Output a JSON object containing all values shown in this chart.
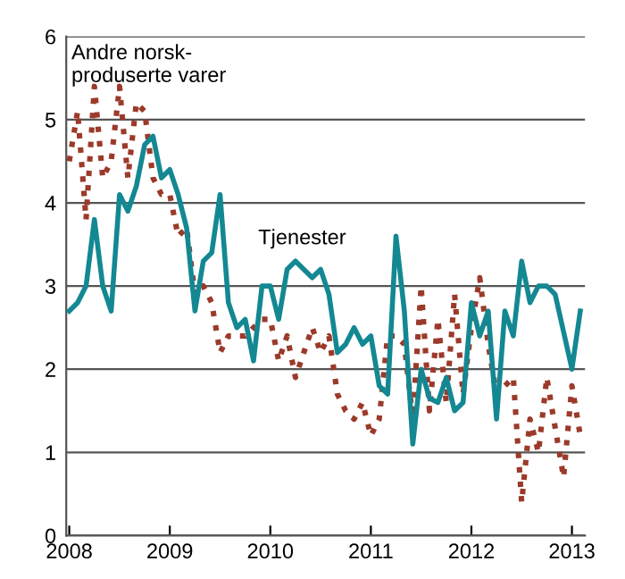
{
  "chart_data": {
    "type": "line",
    "x": [
      2008.0,
      2008.083,
      2008.167,
      2008.25,
      2008.333,
      2008.417,
      2008.5,
      2008.583,
      2008.667,
      2008.75,
      2008.833,
      2008.917,
      2009.0,
      2009.083,
      2009.167,
      2009.25,
      2009.333,
      2009.417,
      2009.5,
      2009.583,
      2009.667,
      2009.75,
      2009.833,
      2009.917,
      2010.0,
      2010.083,
      2010.167,
      2010.25,
      2010.333,
      2010.417,
      2010.5,
      2010.583,
      2010.667,
      2010.75,
      2010.833,
      2010.917,
      2011.0,
      2011.083,
      2011.167,
      2011.25,
      2011.333,
      2011.417,
      2011.5,
      2011.583,
      2011.667,
      2011.75,
      2011.833,
      2011.917,
      2012.0,
      2012.083,
      2012.167,
      2012.25,
      2012.333,
      2012.417,
      2012.5,
      2012.583,
      2012.667,
      2012.75,
      2012.833,
      2012.917,
      2013.0,
      2013.083
    ],
    "series": [
      {
        "name": "Andre norsk-\nproduserte varer",
        "color": "#9b3a2a",
        "line_style": "dotted",
        "values": [
          4.5,
          5.1,
          3.8,
          5.4,
          4.3,
          4.5,
          5.4,
          4.3,
          5.2,
          5.1,
          4.3,
          4.1,
          4.1,
          3.6,
          3.7,
          2.9,
          3.0,
          2.8,
          2.2,
          2.4,
          2.4,
          2.4,
          2.5,
          2.6,
          2.6,
          2.1,
          2.4,
          1.9,
          2.2,
          2.5,
          2.2,
          2.4,
          1.7,
          1.5,
          1.4,
          1.6,
          1.2,
          1.4,
          2.4,
          2.4,
          2.3,
          1.4,
          3.0,
          1.5,
          2.6,
          1.6,
          2.9,
          1.7,
          2.5,
          3.1,
          2.3,
          1.7,
          1.8,
          1.9,
          0.4,
          1.4,
          1.0,
          1.9,
          1.3,
          0.7,
          1.8,
          1.2
        ]
      },
      {
        "name": "Tjenester",
        "color": "#138892",
        "line_style": "solid",
        "values": [
          2.7,
          2.8,
          3.0,
          3.8,
          3.0,
          2.7,
          4.1,
          3.9,
          4.2,
          4.7,
          4.8,
          4.3,
          4.4,
          4.1,
          3.7,
          2.7,
          3.3,
          3.4,
          4.1,
          2.8,
          2.5,
          2.6,
          2.1,
          3.0,
          3.0,
          2.6,
          3.2,
          3.3,
          3.2,
          3.1,
          3.2,
          2.9,
          2.2,
          2.3,
          2.5,
          2.3,
          2.4,
          1.8,
          1.7,
          3.6,
          2.7,
          1.1,
          2.0,
          1.65,
          1.6,
          1.9,
          1.5,
          1.6,
          2.8,
          2.4,
          2.7,
          1.4,
          2.7,
          2.4,
          3.3,
          2.8,
          3.0,
          3.0,
          2.9,
          2.45,
          2.0,
          2.7
        ]
      }
    ],
    "xlim": [
      2007.97,
      2013.13
    ],
    "xticks": [
      2008,
      2009,
      2010,
      2011,
      2012,
      2013
    ],
    "ylim": [
      0,
      6
    ],
    "yticks": [
      0,
      1,
      2,
      3,
      4,
      5,
      6
    ],
    "grid": "y",
    "legend": false
  }
}
